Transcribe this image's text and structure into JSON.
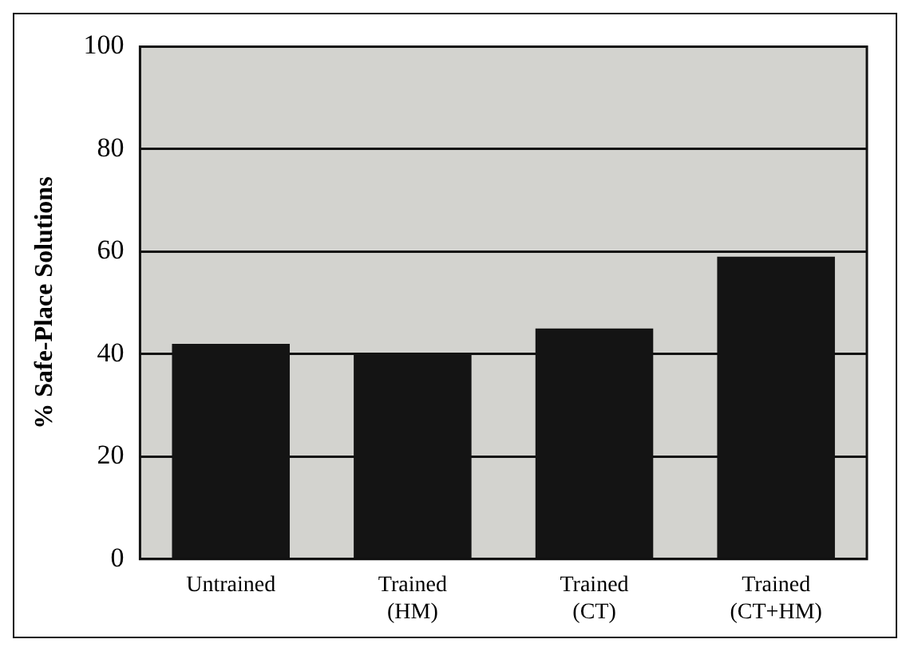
{
  "chart_data": {
    "type": "bar",
    "ylabel": "% Safe-Place Solutions",
    "categories": [
      "Untrained",
      "Trained (HM)",
      "Trained (CT)",
      "Trained (CT+HM)"
    ],
    "values": [
      42,
      40,
      45,
      59
    ],
    "color": "#141414",
    "ylim": [
      0,
      100
    ],
    "yticks": [
      0,
      20,
      40,
      60,
      80,
      100
    ],
    "grid": "y"
  }
}
